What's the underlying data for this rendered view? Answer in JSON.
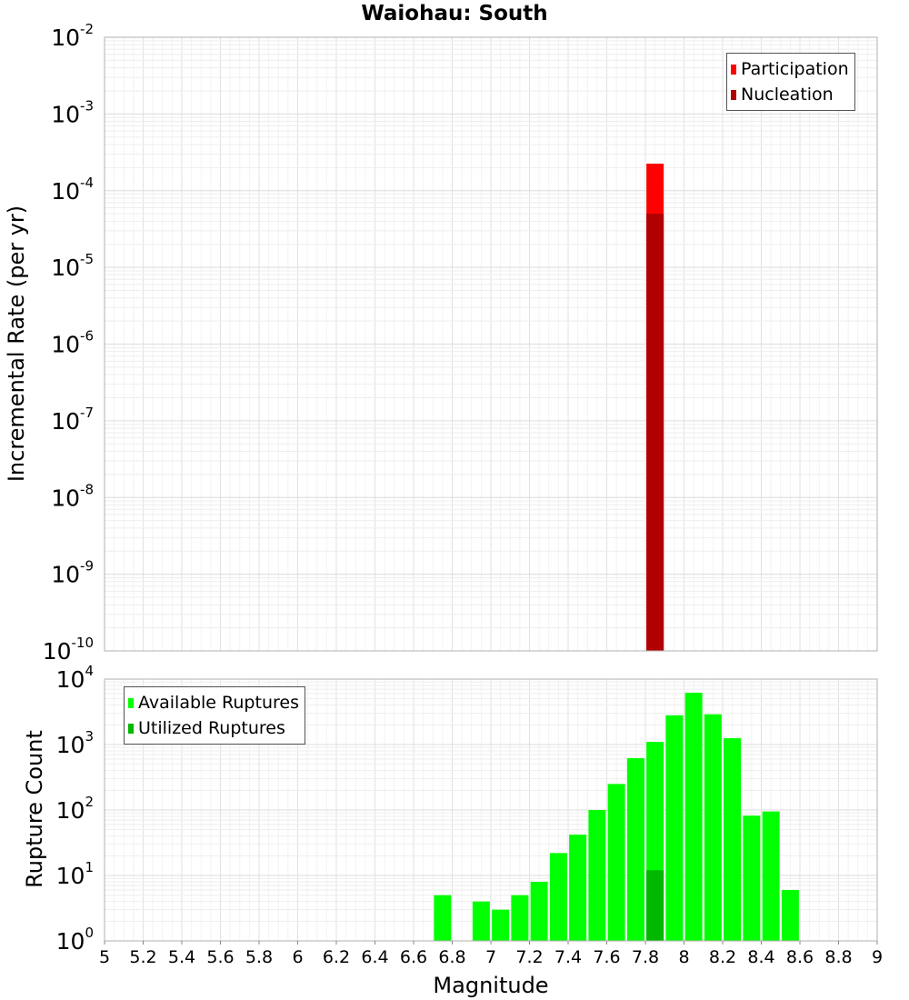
{
  "title": "Waiohau: South",
  "x_axis_label": "Magnitude",
  "chart_data": [
    {
      "type": "bar",
      "name": "rate-plot",
      "ylabel": "Incremental Rate (per yr)",
      "yscale": "log",
      "ylim": [
        1e-10,
        0.01
      ],
      "xlim": [
        5,
        9
      ],
      "y_tick_exponents": [
        -10,
        -9,
        -8,
        -7,
        -6,
        -5,
        -4,
        -3,
        -2
      ],
      "legend_position": "top-right",
      "series": [
        {
          "name": "Participation",
          "color": "#ff0000",
          "x": [
            7.85
          ],
          "values": [
            0.000225
          ]
        },
        {
          "name": "Nucleation",
          "color": "#b00000",
          "x": [
            7.85
          ],
          "values": [
            5e-05
          ]
        }
      ]
    },
    {
      "type": "bar",
      "name": "count-plot",
      "ylabel": "Rupture Count",
      "yscale": "log",
      "ylim": [
        1,
        10000
      ],
      "xlim": [
        5,
        9
      ],
      "y_tick_exponents": [
        0,
        1,
        2,
        3,
        4
      ],
      "legend_position": "top-left",
      "series": [
        {
          "name": "Available Ruptures",
          "color": "#00ff00",
          "x": [
            6.75,
            6.95,
            7.05,
            7.15,
            7.25,
            7.35,
            7.45,
            7.55,
            7.65,
            7.75,
            7.85,
            7.95,
            8.05,
            8.15,
            8.25,
            8.35,
            8.45,
            8.55
          ],
          "values": [
            5,
            4,
            3,
            5,
            8,
            22,
            42,
            100,
            250,
            620,
            1100,
            2800,
            6200,
            2900,
            1250,
            82,
            95,
            6
          ]
        },
        {
          "name": "Utilized Ruptures",
          "color": "#00b800",
          "x": [
            7.85
          ],
          "values": [
            12
          ]
        }
      ]
    }
  ],
  "x_ticks": [
    "5",
    "5.2",
    "5.4",
    "5.6",
    "5.8",
    "6",
    "6.2",
    "6.4",
    "6.6",
    "6.8",
    "7",
    "7.2",
    "7.4",
    "7.6",
    "7.8",
    "8",
    "8.2",
    "8.4",
    "8.6",
    "8.8",
    "9"
  ]
}
